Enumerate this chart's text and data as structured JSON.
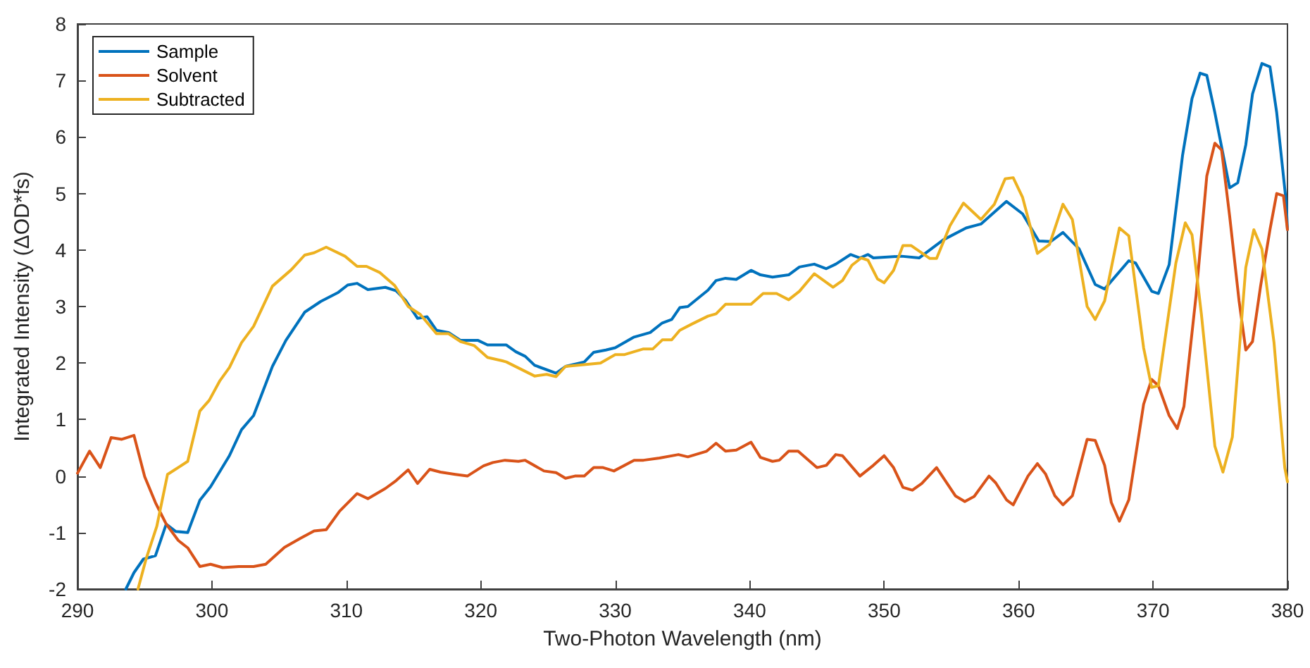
{
  "chart_data": {
    "type": "line",
    "xlabel": "Two-Photon Wavelength (nm)",
    "ylabel": "Integrated Intensity (ΔOD*fs)",
    "xlim": [
      290,
      380
    ],
    "xticks": [
      290,
      300,
      310,
      320,
      330,
      340,
      350,
      360,
      370,
      380
    ],
    "ylim": [
      -2,
      8
    ],
    "yticks": [
      -2,
      -1,
      0,
      1,
      2,
      3,
      4,
      5,
      6,
      7,
      8
    ],
    "grid": false,
    "legend": "top left",
    "marker": "none",
    "line_style": "solid",
    "series": [
      {
        "name": "Sample",
        "color": "#0072bd",
        "x": [
          293.6,
          294.2,
          294.9,
          295.8,
          296.6,
          297.3,
          298.2,
          299.1,
          299.9,
          301.3,
          302.2,
          303.1,
          304.5,
          305.5,
          306.9,
          308.1,
          309.4,
          310.1,
          310.8,
          311.6,
          312.9,
          313.7,
          314.4,
          315.3,
          316.0,
          316.7,
          317.6,
          318.5,
          319.8,
          320.5,
          321.9,
          322.6,
          323.3,
          324.0,
          325.6,
          326.3,
          327.7,
          328.4,
          329.3,
          330.0,
          331.4,
          332.6,
          333.5,
          334.2,
          334.8,
          335.4,
          336.9,
          337.5,
          338.2,
          339.0,
          340.1,
          340.8,
          341.7,
          342.9,
          343.7,
          344.8,
          345.7,
          346.4,
          347.5,
          348.2,
          348.8,
          349.2,
          351.3,
          352.6,
          354.4,
          356.1,
          357.2,
          359.1,
          360.3,
          361.5,
          362.4,
          363.3,
          364.5,
          365.7,
          366.4,
          368.2,
          368.7,
          369.9,
          370.4,
          371.2,
          372.2,
          372.9,
          373.5,
          374.0,
          374.6,
          375.7,
          376.3,
          376.9,
          377.4,
          378.1,
          378.7,
          379.2,
          379.9,
          380.0
        ],
        "values": [
          -2.0,
          -1.71,
          -1.47,
          -1.41,
          -0.85,
          -0.98,
          -1.0,
          -0.43,
          -0.19,
          0.36,
          0.82,
          1.07,
          1.94,
          2.4,
          2.9,
          3.09,
          3.25,
          3.38,
          3.41,
          3.3,
          3.34,
          3.28,
          3.11,
          2.79,
          2.82,
          2.58,
          2.54,
          2.4,
          2.4,
          2.32,
          2.32,
          2.2,
          2.12,
          1.96,
          1.82,
          1.94,
          2.02,
          2.19,
          2.23,
          2.27,
          2.46,
          2.54,
          2.71,
          2.77,
          2.98,
          3.0,
          3.29,
          3.46,
          3.5,
          3.48,
          3.64,
          3.56,
          3.52,
          3.56,
          3.7,
          3.75,
          3.67,
          3.75,
          3.92,
          3.86,
          3.92,
          3.86,
          3.89,
          3.86,
          4.18,
          4.39,
          4.46,
          4.86,
          4.64,
          4.16,
          4.15,
          4.31,
          4.02,
          3.39,
          3.31,
          3.81,
          3.77,
          3.27,
          3.23,
          3.74,
          5.68,
          6.68,
          7.13,
          7.09,
          6.43,
          5.1,
          5.19,
          5.86,
          6.76,
          7.3,
          7.24,
          6.43,
          4.86,
          4.36
        ]
      },
      {
        "name": "Solvent",
        "color": "#d95319",
        "x": [
          290.0,
          290.9,
          291.7,
          292.5,
          293.3,
          294.2,
          295.0,
          295.8,
          296.6,
          297.5,
          298.2,
          299.1,
          299.9,
          300.8,
          302.0,
          303.1,
          304.0,
          305.4,
          306.6,
          307.6,
          308.5,
          309.5,
          310.8,
          311.6,
          312.9,
          313.7,
          314.6,
          315.3,
          316.2,
          317.0,
          318.1,
          319.0,
          320.2,
          320.9,
          321.8,
          322.8,
          323.3,
          324.7,
          325.6,
          326.3,
          327.0,
          327.7,
          328.4,
          329.1,
          329.9,
          331.4,
          332.1,
          333.3,
          334.7,
          335.4,
          336.8,
          337.5,
          338.2,
          339.0,
          340.1,
          340.8,
          341.7,
          342.2,
          342.9,
          343.6,
          345.0,
          345.7,
          346.4,
          346.9,
          348.2,
          349.2,
          350.0,
          350.7,
          351.4,
          352.1,
          352.8,
          353.9,
          355.3,
          356.0,
          356.7,
          357.8,
          358.3,
          359.1,
          359.6,
          360.7,
          361.4,
          362.0,
          362.7,
          363.3,
          364.0,
          365.1,
          365.7,
          366.4,
          366.9,
          367.5,
          368.2,
          369.3,
          369.9,
          370.4,
          371.2,
          371.8,
          372.3,
          373.2,
          374.0,
          374.6,
          375.1,
          375.7,
          376.4,
          376.9,
          377.4,
          378.0,
          378.7,
          379.2,
          379.7,
          380.0
        ],
        "values": [
          0.05,
          0.44,
          0.15,
          0.68,
          0.65,
          0.72,
          -0.01,
          -0.47,
          -0.85,
          -1.14,
          -1.27,
          -1.6,
          -1.56,
          -1.62,
          -1.6,
          -1.6,
          -1.56,
          -1.26,
          -1.1,
          -0.97,
          -0.95,
          -0.62,
          -0.31,
          -0.4,
          -0.22,
          -0.08,
          0.11,
          -0.13,
          0.12,
          0.07,
          0.03,
          0.0,
          0.18,
          0.24,
          0.28,
          0.26,
          0.28,
          0.09,
          0.06,
          -0.04,
          0.0,
          0.0,
          0.15,
          0.15,
          0.09,
          0.28,
          0.28,
          0.32,
          0.38,
          0.34,
          0.44,
          0.58,
          0.44,
          0.46,
          0.6,
          0.33,
          0.26,
          0.28,
          0.44,
          0.44,
          0.15,
          0.19,
          0.38,
          0.36,
          0.0,
          0.19,
          0.36,
          0.15,
          -0.2,
          -0.25,
          -0.13,
          0.15,
          -0.35,
          -0.45,
          -0.36,
          0.0,
          -0.12,
          -0.42,
          -0.51,
          0.0,
          0.22,
          0.04,
          -0.35,
          -0.51,
          -0.35,
          0.65,
          0.63,
          0.19,
          -0.47,
          -0.8,
          -0.42,
          1.27,
          1.71,
          1.6,
          1.07,
          0.84,
          1.23,
          3.19,
          5.31,
          5.89,
          5.77,
          4.6,
          3.1,
          2.23,
          2.38,
          3.36,
          4.36,
          5.0,
          4.96,
          4.36
        ]
      },
      {
        "name": "Subtracted",
        "color": "#edb120",
        "x": [
          294.5,
          295.1,
          295.9,
          296.7,
          298.2,
          299.1,
          299.8,
          300.6,
          301.3,
          302.2,
          303.1,
          304.5,
          305.9,
          306.9,
          307.6,
          308.5,
          309.9,
          310.8,
          311.5,
          312.5,
          313.6,
          314.6,
          315.5,
          316.7,
          317.6,
          318.5,
          319.5,
          320.5,
          321.6,
          321.9,
          324.0,
          324.9,
          325.6,
          326.3,
          328.9,
          330.0,
          330.7,
          332.1,
          332.8,
          333.5,
          334.2,
          334.8,
          335.7,
          336.9,
          337.5,
          338.2,
          340.1,
          341.0,
          342.0,
          342.9,
          343.7,
          344.8,
          346.2,
          346.9,
          347.6,
          348.3,
          348.8,
          349.5,
          350.0,
          350.7,
          351.4,
          352.0,
          353.4,
          353.9,
          354.9,
          355.9,
          357.2,
          358.2,
          359.0,
          359.6,
          360.3,
          361.4,
          362.3,
          363.3,
          364.0,
          365.1,
          365.7,
          366.4,
          367.5,
          368.2,
          369.3,
          369.9,
          370.4,
          371.7,
          372.4,
          372.9,
          373.6,
          374.6,
          375.2,
          375.9,
          376.9,
          377.5,
          378.1,
          379.0,
          379.8,
          380.0
        ],
        "values": [
          -2.0,
          -1.47,
          -0.89,
          0.03,
          0.26,
          1.15,
          1.34,
          1.69,
          1.92,
          2.36,
          2.65,
          3.36,
          3.65,
          3.91,
          3.95,
          4.05,
          3.89,
          3.71,
          3.71,
          3.6,
          3.37,
          3.0,
          2.86,
          2.52,
          2.52,
          2.38,
          2.31,
          2.1,
          2.04,
          2.02,
          1.77,
          1.8,
          1.76,
          1.94,
          2.0,
          2.15,
          2.15,
          2.25,
          2.25,
          2.41,
          2.41,
          2.58,
          2.69,
          2.83,
          2.87,
          3.04,
          3.04,
          3.23,
          3.23,
          3.12,
          3.27,
          3.58,
          3.34,
          3.46,
          3.73,
          3.86,
          3.82,
          3.49,
          3.42,
          3.64,
          4.08,
          4.08,
          3.85,
          3.85,
          4.43,
          4.83,
          4.54,
          4.81,
          5.26,
          5.28,
          4.93,
          3.94,
          4.1,
          4.81,
          4.54,
          3.0,
          2.77,
          3.1,
          4.39,
          4.25,
          2.27,
          1.57,
          1.6,
          3.77,
          4.48,
          4.27,
          2.86,
          0.53,
          0.07,
          0.69,
          3.69,
          4.36,
          4.02,
          2.36,
          0.15,
          -0.1
        ]
      }
    ]
  }
}
